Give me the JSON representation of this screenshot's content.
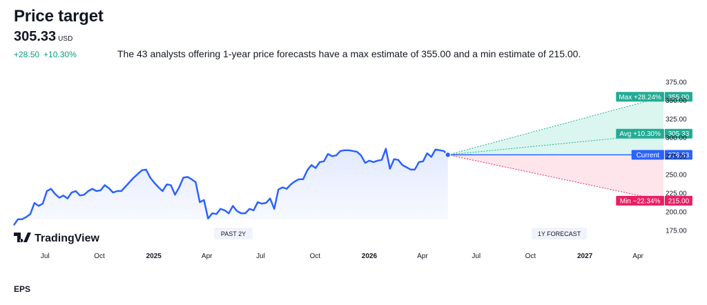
{
  "header": {
    "title": "Price target",
    "price": "305.33",
    "currency": "USD",
    "change_abs": "+28.50",
    "change_pct": "+10.30%",
    "summary": "The 43 analysts offering 1-year price forecasts have a max estimate of 355.00 and a min estimate of 215.00."
  },
  "brand": {
    "name": "TradingView"
  },
  "footer": {
    "eps_label": "EPS"
  },
  "chart_data": {
    "type": "line",
    "ylim": [
      160,
      385
    ],
    "yticks": [
      175,
      200,
      225,
      250,
      275,
      300,
      325,
      350,
      375
    ],
    "ytick_labels": [
      "175.00",
      "200.00",
      "225.00",
      "250.00",
      "275.00",
      "300.00",
      "325.00",
      "350.00",
      "375.00"
    ],
    "xlim": [
      "2024-05-09",
      "2027-05-20"
    ],
    "xticks": [
      {
        "date": "2024-07-01",
        "label": "Jul"
      },
      {
        "date": "2024-10-01",
        "label": "Oct"
      },
      {
        "date": "2025-01-01",
        "label": "2025"
      },
      {
        "date": "2025-04-01",
        "label": "Apr"
      },
      {
        "date": "2025-07-01",
        "label": "Jul"
      },
      {
        "date": "2025-10-01",
        "label": "Oct"
      },
      {
        "date": "2026-01-01",
        "label": "2026"
      },
      {
        "date": "2026-04-01",
        "label": "Apr"
      },
      {
        "date": "2026-07-01",
        "label": "Jul"
      },
      {
        "date": "2026-10-01",
        "label": "Oct"
      },
      {
        "date": "2027-01-01",
        "label": "2027"
      },
      {
        "date": "2027-04-01",
        "label": "Apr"
      }
    ],
    "section_labels": {
      "past": "PAST 2Y",
      "forecast": "1Y FORECAST"
    },
    "history": {
      "dates": [
        "2024-05-09",
        "2024-05-16",
        "2024-05-23",
        "2024-05-30",
        "2024-06-06",
        "2024-06-13",
        "2024-06-20",
        "2024-06-27",
        "2024-07-04",
        "2024-07-11",
        "2024-07-18",
        "2024-07-25",
        "2024-08-01",
        "2024-08-08",
        "2024-08-15",
        "2024-08-22",
        "2024-08-29",
        "2024-09-05",
        "2024-09-12",
        "2024-09-19",
        "2024-09-26",
        "2024-10-03",
        "2024-10-10",
        "2024-10-17",
        "2024-10-24",
        "2024-10-31",
        "2024-11-07",
        "2024-11-14",
        "2024-11-21",
        "2024-11-28",
        "2024-12-05",
        "2024-12-12",
        "2024-12-19",
        "2024-12-26",
        "2025-01-02",
        "2025-01-09",
        "2025-01-16",
        "2025-01-23",
        "2025-01-30",
        "2025-02-06",
        "2025-02-13",
        "2025-02-20",
        "2025-02-27",
        "2025-03-06",
        "2025-03-13",
        "2025-03-20",
        "2025-03-27",
        "2025-04-03",
        "2025-04-10",
        "2025-04-17",
        "2025-04-24",
        "2025-05-01",
        "2025-05-08",
        "2025-05-15",
        "2025-05-22",
        "2025-05-29",
        "2025-06-05",
        "2025-06-12",
        "2025-06-19",
        "2025-06-26",
        "2025-07-03",
        "2025-07-10",
        "2025-07-17",
        "2025-07-24",
        "2025-07-31",
        "2025-08-07",
        "2025-08-14",
        "2025-08-21",
        "2025-08-28",
        "2025-09-04",
        "2025-09-11",
        "2025-09-18",
        "2025-09-25",
        "2025-10-02",
        "2025-10-09",
        "2025-10-16",
        "2025-10-23",
        "2025-10-30",
        "2025-11-06",
        "2025-11-13",
        "2025-11-20",
        "2025-11-27",
        "2025-12-04",
        "2025-12-11",
        "2025-12-18",
        "2025-12-25",
        "2026-01-01",
        "2026-01-08",
        "2026-01-15",
        "2026-01-22",
        "2026-01-29",
        "2026-02-05",
        "2026-02-12",
        "2026-02-19",
        "2026-02-26",
        "2026-03-05",
        "2026-03-12",
        "2026-03-19",
        "2026-03-26",
        "2026-04-02",
        "2026-04-09",
        "2026-04-16",
        "2026-04-23",
        "2026-04-30",
        "2026-05-07",
        "2026-05-14"
      ],
      "values": [
        182,
        190,
        190,
        193,
        197,
        212,
        208,
        211,
        228,
        231,
        224,
        219,
        222,
        218,
        226,
        228,
        222,
        223,
        228,
        231,
        228,
        229,
        236,
        232,
        226,
        228,
        228,
        234,
        240,
        246,
        251,
        256,
        257,
        246,
        239,
        233,
        228,
        237,
        236,
        223,
        233,
        246,
        247,
        244,
        240,
        213,
        216,
        191,
        198,
        197,
        204,
        202,
        198,
        208,
        201,
        198,
        198,
        204,
        202,
        213,
        211,
        212,
        218,
        204,
        230,
        233,
        231,
        237,
        241,
        244,
        244,
        256,
        263,
        259,
        267,
        268,
        278,
        275,
        276,
        282,
        283,
        283,
        282,
        281,
        276,
        266,
        269,
        267,
        269,
        270,
        285,
        258,
        271,
        270,
        263,
        260,
        257,
        257,
        267,
        268,
        279,
        274,
        284,
        283,
        282,
        276.83
      ]
    },
    "current": {
      "date": "2026-05-14",
      "value": 276.83,
      "label": "Current",
      "value_label": "276.83"
    },
    "forecast": {
      "target_date": "2027-05-14",
      "max": {
        "value": 355.0,
        "label": "Max +28.24%",
        "value_label": "355.00"
      },
      "avg": {
        "value": 305.33,
        "label": "Avg +10.30%",
        "value_label": "305.33"
      },
      "min": {
        "value": 215.0,
        "label": "Min −22.34%",
        "value_label": "215.00"
      }
    },
    "colors": {
      "line": "#2962ff",
      "past_fill": "#eef2ff",
      "up": "#22ab94",
      "up_fill": "#d4f5ec",
      "down": "#e91e63",
      "down_fill": "#fde0e8",
      "current_label": "#2962ff",
      "axis_text": "#131722",
      "section_label_bg": "#f0f3fa"
    }
  }
}
